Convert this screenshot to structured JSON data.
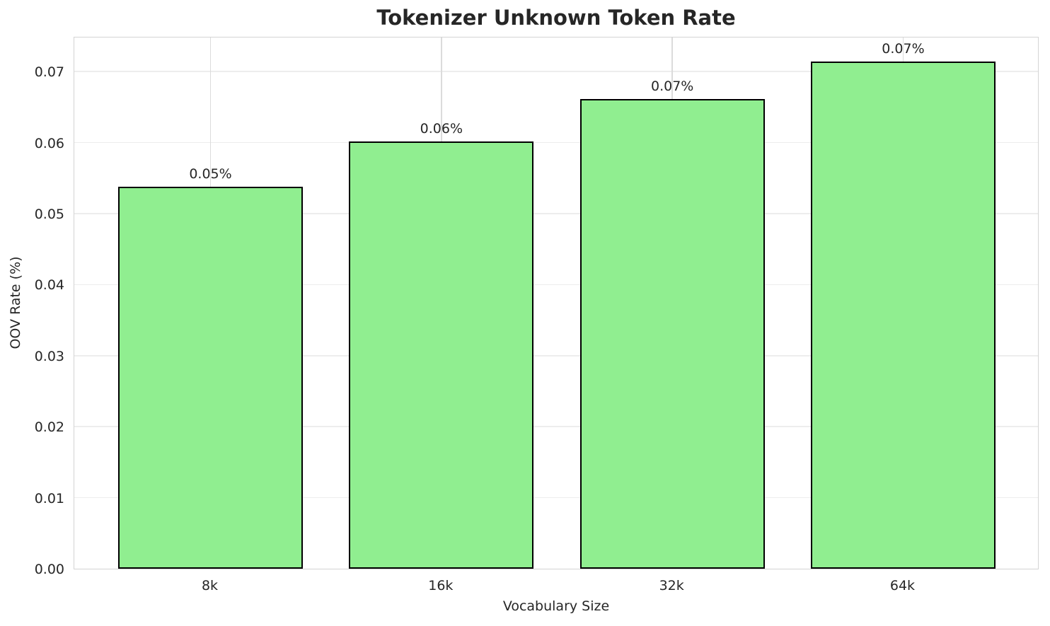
{
  "chart_data": {
    "type": "bar",
    "title": "Tokenizer Unknown Token Rate",
    "xlabel": "Vocabulary Size",
    "ylabel": "OOV Rate (%)",
    "categories": [
      "8k",
      "16k",
      "32k",
      "64k"
    ],
    "values": [
      0.0538,
      0.0602,
      0.0661,
      0.0714
    ],
    "bar_labels": [
      "0.05%",
      "0.06%",
      "0.07%",
      "0.07%"
    ],
    "ylim": [
      0,
      0.075
    ],
    "ytick_values": [
      0,
      0.01,
      0.02,
      0.03,
      0.04,
      0.05,
      0.06,
      0.07
    ],
    "ytick_labels": [
      "0.00",
      "0.01",
      "0.02",
      "0.03",
      "0.04",
      "0.05",
      "0.06",
      "0.07"
    ],
    "grid": true,
    "legend": "none",
    "colors": {
      "bar_fill": "#90ee90",
      "bar_edge": "#000000",
      "grid_horizontal": "#ededed",
      "grid_vertical": "#dbdbdb",
      "spine": "#d4d4d4",
      "text": "#262626"
    }
  }
}
